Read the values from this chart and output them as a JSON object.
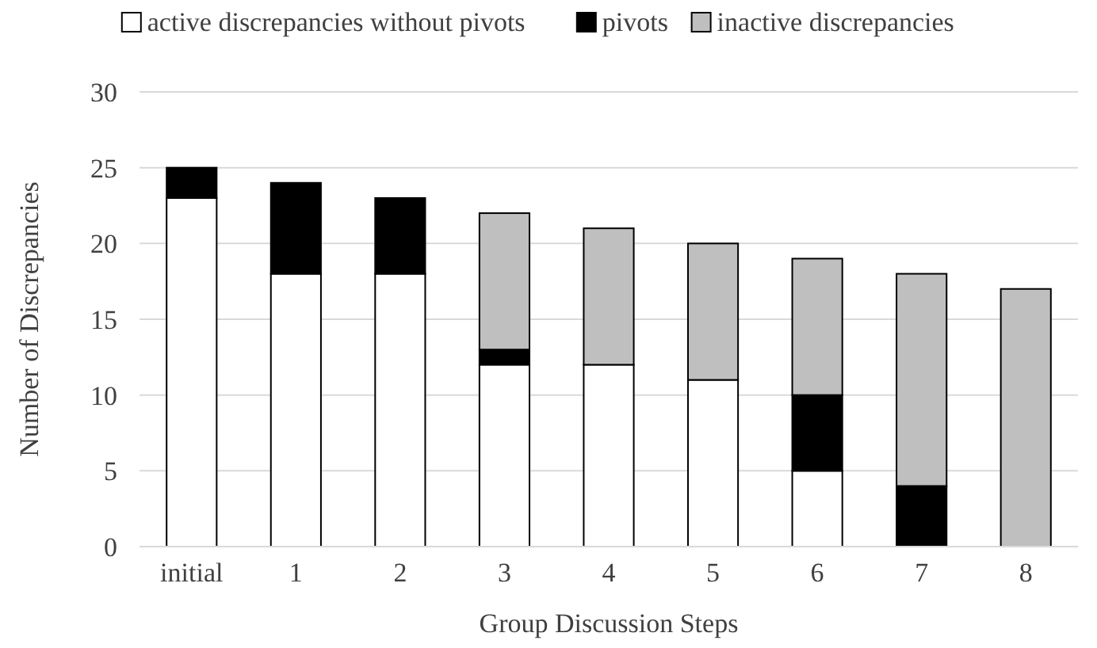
{
  "chart_data": {
    "type": "bar",
    "stacked": true,
    "xlabel": "Group Discussion Steps",
    "ylabel": "Number of Discrepancies",
    "categories": [
      "initial",
      "1",
      "2",
      "3",
      "4",
      "5",
      "6",
      "7",
      "8"
    ],
    "series": [
      {
        "name": "active discrepancies without pivots",
        "color": "#ffffff",
        "values": [
          23,
          18,
          18,
          12,
          12,
          11,
          5,
          0,
          0
        ]
      },
      {
        "name": "pivots",
        "color": "#000000",
        "values": [
          2,
          6,
          5,
          1,
          0,
          0,
          5,
          4,
          0
        ]
      },
      {
        "name": "inactive discrepancies",
        "color": "#bfbfbf",
        "values": [
          0,
          0,
          0,
          9,
          9,
          9,
          9,
          14,
          17
        ]
      }
    ],
    "ylim": [
      0,
      30
    ],
    "yticks": [
      0,
      5,
      10,
      15,
      20,
      25,
      30
    ],
    "grid": "y",
    "legend": "top"
  }
}
